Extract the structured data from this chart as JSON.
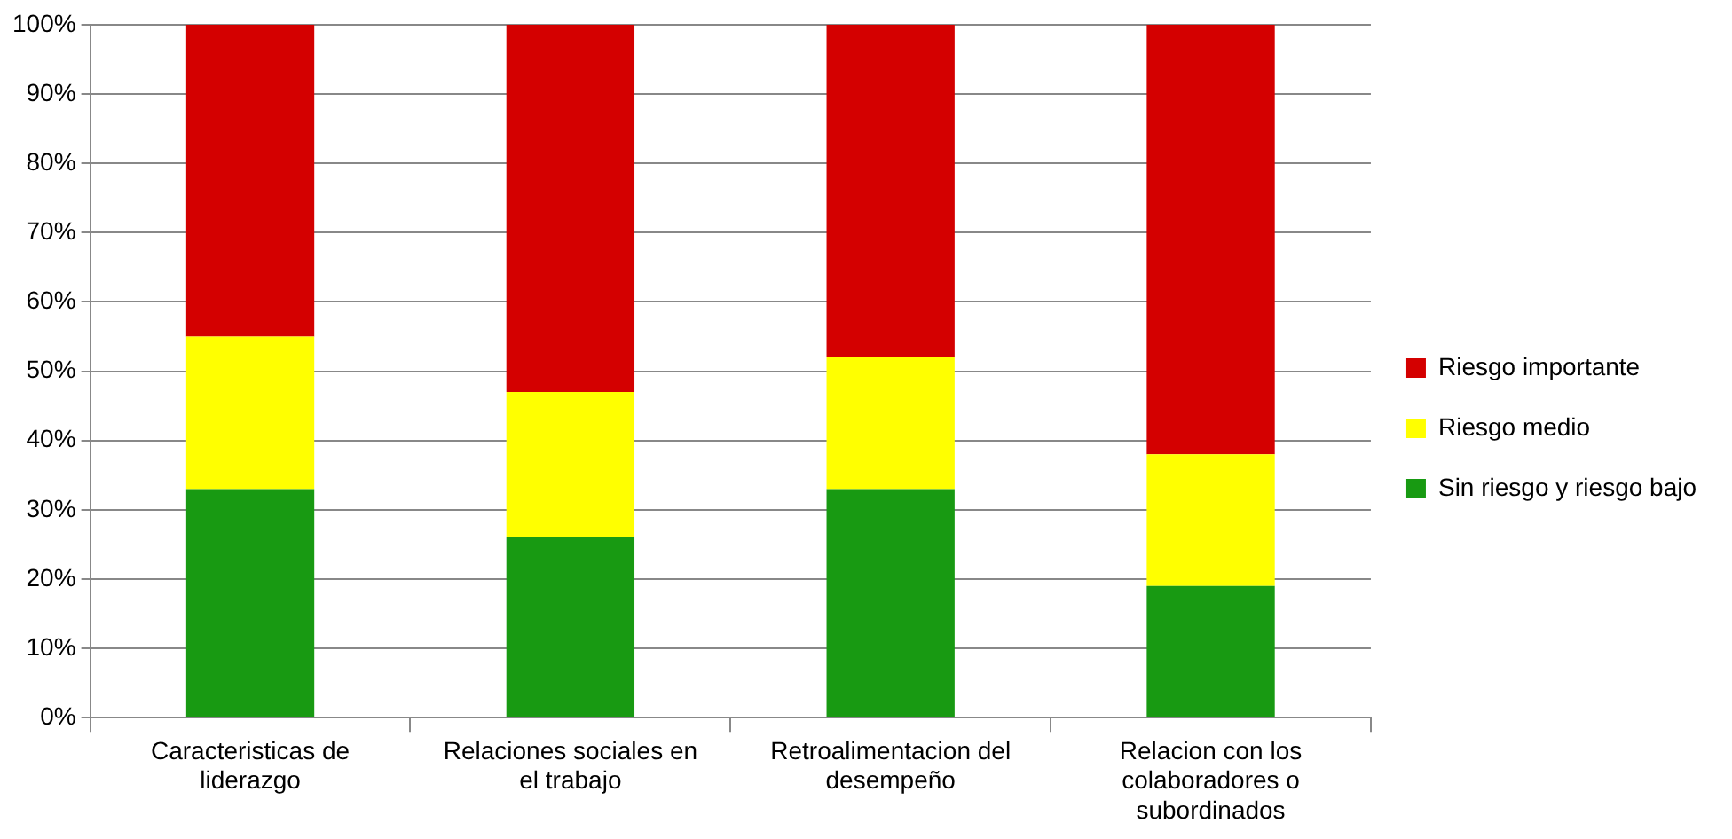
{
  "chart_data": {
    "type": "bar",
    "stacked": true,
    "categories": [
      "Caracteristicas de liderazgo",
      "Relaciones sociales en el trabajo",
      "Retroalimentacion del desempeño",
      "Relacion con los colaboradores o subordinados"
    ],
    "series": [
      {
        "name": "Sin riesgo y riesgo bajo",
        "color": "#189a12",
        "values": [
          33,
          26,
          33,
          19
        ]
      },
      {
        "name": "Riesgo medio",
        "color": "#ffff00",
        "values": [
          22,
          21,
          19,
          19
        ]
      },
      {
        "name": "Riesgo importante",
        "color": "#d40000",
        "values": [
          45,
          53,
          48,
          62
        ]
      }
    ],
    "ylim": [
      0,
      100
    ],
    "yticks": [
      {
        "value": 0,
        "label": "0%"
      },
      {
        "value": 10,
        "label": "10%"
      },
      {
        "value": 20,
        "label": "20%"
      },
      {
        "value": 30,
        "label": "30%"
      },
      {
        "value": 40,
        "label": "40%"
      },
      {
        "value": 50,
        "label": "50%"
      },
      {
        "value": 60,
        "label": "60%"
      },
      {
        "value": 70,
        "label": "70%"
      },
      {
        "value": 80,
        "label": "80%"
      },
      {
        "value": 90,
        "label": "90%"
      },
      {
        "value": 100,
        "label": "100%"
      }
    ],
    "grid": "y",
    "legend": "right"
  }
}
